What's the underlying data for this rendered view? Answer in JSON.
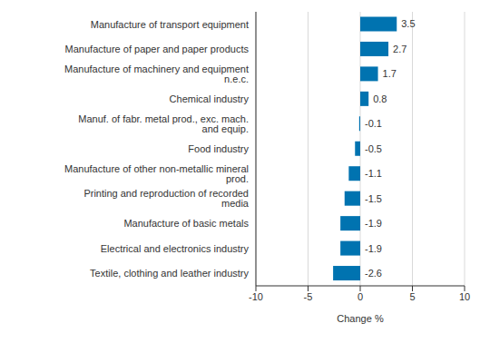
{
  "chart_data": {
    "type": "bar",
    "orientation": "horizontal",
    "x_label": "Change %",
    "categories": [
      "Manufacture of transport equipment",
      "Manufacture of paper and paper products",
      "Manufacture of machinery and equipment n.e.c.",
      "Chemical industry",
      "Manuf. of fabr. metal prod., exc. mach. and equip.",
      "Food industry",
      "Manufacture of other non-metallic mineral prod.",
      "Printing and reproduction of recorded media",
      "Manufacture of basic metals",
      "Electrical and electronics industry",
      "Textile, clothing and leather industry"
    ],
    "values": [
      3.5,
      2.7,
      1.7,
      0.8,
      -0.1,
      -0.5,
      -1.1,
      -1.5,
      -1.9,
      -1.9,
      -2.6
    ],
    "color": "#0073b0",
    "xlim": [
      -10,
      10
    ],
    "xticks": [
      -10,
      -5,
      0,
      5,
      10
    ],
    "grid": true,
    "data_labels": true
  }
}
